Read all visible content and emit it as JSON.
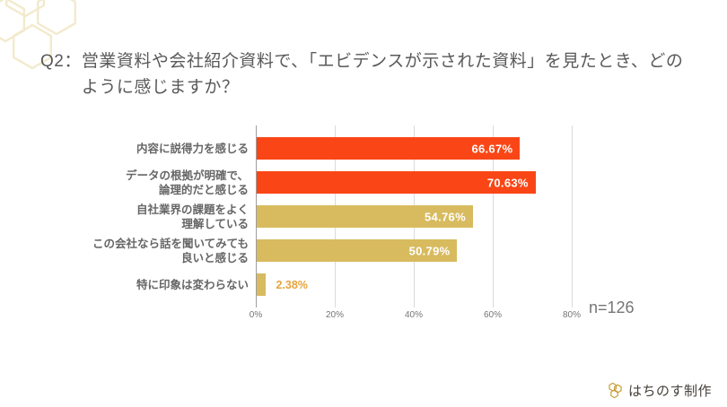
{
  "title": {
    "prefix": "Q2：",
    "line1": "営業資料や会社紹介資料で、「エビデンスが示された資料」を見たとき、どの",
    "line2": "ように感じますか？",
    "full": "Q2：営業資料や会社紹介資料で、「エビデンスが示された資料」を見たとき、どのように感じますか？"
  },
  "chart_data": {
    "type": "bar",
    "orientation": "horizontal",
    "categories": [
      "内容に説得力を感じる",
      "データの根拠が明確で、論理的だと感じる",
      "自社業界の課題をよく理解している",
      "この会社なら話を聞いてみても良いと感じる",
      "特に印象は変わらない"
    ],
    "category_lines": [
      [
        "内容に説得力を感じる"
      ],
      [
        "データの根拠が明確で、",
        "論理的だと感じる"
      ],
      [
        "自社業界の課題をよく",
        "理解している"
      ],
      [
        "この会社なら話を聞いてみても",
        "良いと感じる"
      ],
      [
        "特に印象は変わらない"
      ]
    ],
    "values": [
      66.67,
      70.63,
      54.76,
      50.79,
      2.38
    ],
    "value_labels": [
      "66.67%",
      "70.63%",
      "54.76%",
      "50.79%",
      "2.38%"
    ],
    "bar_colors": [
      "#FA4616",
      "#FA4616",
      "#D8BB5F",
      "#D8BB5F",
      "#D8BB5F"
    ],
    "xlim": [
      0,
      100
    ],
    "x_tick_values": [
      0,
      20,
      40,
      60,
      80
    ],
    "x_tick_labels": [
      "0%",
      "20%",
      "40%",
      "60%",
      "80%"
    ],
    "grid": "vertical",
    "legend": null,
    "annotation": "n=126"
  },
  "colors": {
    "bar_strong": "#FA4616",
    "bar_mild": "#D8BB5F",
    "outside_value_text": "#E7A43B",
    "title_text": "#595959",
    "category_text": "#666666",
    "deco_stroke": "#F3EACD",
    "logo_gold": "#C59A2F"
  },
  "footer": {
    "logo_text": "はちのす制作"
  },
  "icons": {
    "deco": "honeycomb-pattern",
    "logo": "honeycomb-logo"
  }
}
